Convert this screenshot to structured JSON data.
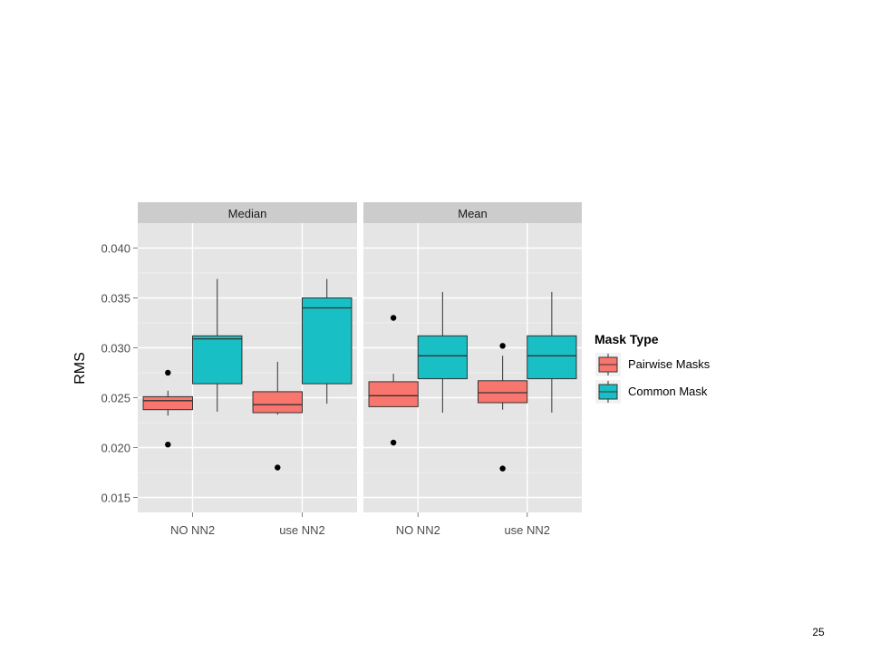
{
  "page_number": "25",
  "colors": {
    "pairwise": "#F8766D",
    "common": "#18BFC4",
    "panel_bg": "#E5E5E5",
    "strip_bg": "#CCCCCC",
    "grid": "#FFFFFF"
  },
  "chart_data": {
    "type": "boxplot",
    "ylabel": "RMS",
    "xlabel": "",
    "ylim": [
      0.0135,
      0.0425
    ],
    "y_ticks": [
      "0.015",
      "0.020",
      "0.025",
      "0.030",
      "0.035",
      "0.040"
    ],
    "grid": true,
    "categories": [
      "NO NN2",
      "use NN2"
    ],
    "legend": {
      "title": "Mask Type",
      "position": "right",
      "entries": [
        "Pairwise Masks",
        "Common Mask"
      ]
    },
    "facets": [
      {
        "label": "Median",
        "groups": [
          {
            "category": "NO NN2",
            "boxes": [
              {
                "series": "Pairwise Masks",
                "whisker_low": 0.0232,
                "q1": 0.0238,
                "median": 0.0247,
                "q3": 0.0251,
                "whisker_high": 0.0257,
                "outliers": [
                  0.0275,
                  0.0203
                ]
              },
              {
                "series": "Common Mask",
                "whisker_low": 0.0236,
                "q1": 0.0264,
                "median": 0.0309,
                "q3": 0.0312,
                "whisker_high": 0.0369,
                "outliers": []
              }
            ]
          },
          {
            "category": "use NN2",
            "boxes": [
              {
                "series": "Pairwise Masks",
                "whisker_low": 0.0233,
                "q1": 0.0235,
                "median": 0.0243,
                "q3": 0.0256,
                "whisker_high": 0.0286,
                "outliers": [
                  0.018
                ]
              },
              {
                "series": "Common Mask",
                "whisker_low": 0.0244,
                "q1": 0.0264,
                "median": 0.034,
                "q3": 0.035,
                "whisker_high": 0.0369,
                "outliers": []
              }
            ]
          }
        ]
      },
      {
        "label": "Mean",
        "groups": [
          {
            "category": "NO NN2",
            "boxes": [
              {
                "series": "Pairwise Masks",
                "whisker_low": 0.0241,
                "q1": 0.0241,
                "median": 0.0252,
                "q3": 0.0266,
                "whisker_high": 0.0274,
                "outliers": [
                  0.033,
                  0.0205
                ]
              },
              {
                "series": "Common Mask",
                "whisker_low": 0.0235,
                "q1": 0.0269,
                "median": 0.0292,
                "q3": 0.0312,
                "whisker_high": 0.0356,
                "outliers": []
              }
            ]
          },
          {
            "category": "use NN2",
            "boxes": [
              {
                "series": "Pairwise Masks",
                "whisker_low": 0.0238,
                "q1": 0.0245,
                "median": 0.0255,
                "q3": 0.0267,
                "whisker_high": 0.0292,
                "outliers": [
                  0.0302,
                  0.0179
                ]
              },
              {
                "series": "Common Mask",
                "whisker_low": 0.0235,
                "q1": 0.0269,
                "median": 0.0292,
                "q3": 0.0312,
                "whisker_high": 0.0356,
                "outliers": []
              }
            ]
          }
        ]
      }
    ]
  }
}
